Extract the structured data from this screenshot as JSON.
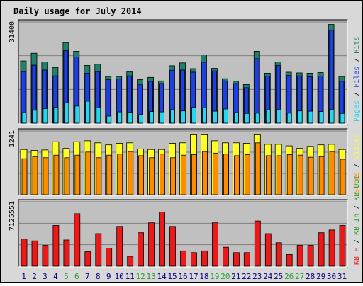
{
  "chart_data": {
    "type": "bar",
    "title": "Daily usage for July 2014",
    "colors": {
      "hits": "#22806a",
      "files": "#1e3fe6",
      "pages": "#22d8f0",
      "visits": "#ffff22",
      "sites": "#ff8c00",
      "kb_in": "#2aa030",
      "kb_out": "#2aa030",
      "kb_f": "#ee1818",
      "weekend": "#2aa030",
      "weekday": "#000080",
      "panel": "#c0c0c0",
      "title": "#0000cc"
    },
    "days": [
      "1",
      "2",
      "3",
      "4",
      "5",
      "6",
      "7",
      "8",
      "9",
      "10",
      "11",
      "12",
      "13",
      "14",
      "15",
      "16",
      "17",
      "18",
      "19",
      "20",
      "21",
      "22",
      "23",
      "24",
      "25",
      "26",
      "27",
      "28",
      "29",
      "30",
      "31"
    ],
    "weekend_days": [
      5,
      6,
      12,
      13,
      19,
      20,
      26,
      27
    ],
    "panels": {
      "top": {
        "ymax_label": "31400",
        "ymax": 31400,
        "legend": [
          {
            "text": "Pages",
            "key": "pages"
          },
          {
            "text": " / ",
            "key": "sep"
          },
          {
            "text": "Files",
            "key": "files"
          },
          {
            "text": " / ",
            "key": "sep"
          },
          {
            "text": "Hits",
            "key": "hits"
          }
        ],
        "series": [
          {
            "name": "Hits",
            "key": "hits",
            "values": [
              19300,
              21700,
              19000,
              17300,
              25000,
              22300,
              17900,
              18300,
              14500,
              14500,
              15900,
              13500,
              14200,
              13100,
              17800,
              18700,
              16900,
              21200,
              17000,
              13800,
              13000,
              12000,
              22300,
              15500,
              19000,
              15800,
              15600,
              15500,
              15700,
              30600,
              14500
            ]
          },
          {
            "name": "Files",
            "key": "files",
            "values": [
              16000,
              18000,
              16500,
              14700,
              22500,
              20500,
              15500,
              16000,
              13500,
              13700,
              14700,
              11900,
              13000,
              12300,
              16400,
              16500,
              15800,
              18900,
              16200,
              13100,
              12300,
              11000,
              20000,
              14600,
              17900,
              14800,
              14700,
              14400,
              14600,
              28800,
              13000
            ]
          },
          {
            "name": "Pages",
            "key": "pages",
            "values": [
              3300,
              4000,
              4500,
              4900,
              6300,
              5300,
              6800,
              4700,
              2200,
              3500,
              3400,
              2700,
              3600,
              3500,
              4200,
              3800,
              4900,
              4700,
              3700,
              4400,
              3300,
              3000,
              3100,
              4100,
              4300,
              3100,
              3800,
              3700,
              3600,
              4300,
              3000
            ]
          }
        ]
      },
      "middle": {
        "ymax_label": "1241",
        "ymax": 1241,
        "legend": [
          {
            "text": "Sites",
            "key": "sites"
          },
          {
            "text": " / ",
            "key": "sep"
          },
          {
            "text": "Visits",
            "key": "visits"
          }
        ],
        "series": [
          {
            "name": "Visits",
            "key": "visits",
            "values": [
              880,
              860,
              870,
              1030,
              900,
              1030,
              1050,
              1010,
              970,
              1000,
              1010,
              890,
              880,
              880,
              1000,
              1010,
              1180,
              1180,
              1050,
              1010,
              1010,
              1000,
              1180,
              980,
              980,
              950,
              900,
              940,
              970,
              980,
              880
            ]
          },
          {
            "name": "Sites",
            "key": "sites",
            "values": [
              700,
              740,
              720,
              770,
              720,
              770,
              830,
              720,
              770,
              790,
              840,
              760,
              720,
              790,
              720,
              770,
              780,
              840,
              810,
              790,
              760,
              780,
              1010,
              760,
              760,
              780,
              770,
              730,
              740,
              840,
              690
            ]
          }
        ]
      },
      "bottom": {
        "ymax_label": "7125551",
        "ymax": 7125551,
        "legend": [
          {
            "text": "KB F",
            "key": "kb_f"
          },
          {
            "text": " / ",
            "key": "sep"
          },
          {
            "text": "KB In",
            "key": "kb_in"
          },
          {
            "text": " / ",
            "key": "sep"
          },
          {
            "text": "KB Out",
            "key": "kb_out"
          }
        ],
        "series": [
          {
            "name": "KB F",
            "key": "kb_f",
            "values": [
              3000000,
              2800000,
              2300000,
              4500000,
              2900000,
              5800000,
              1600000,
              3600000,
              2000000,
              4400000,
              1100000,
              3700000,
              4800000,
              6000000,
              4400000,
              1700000,
              1500000,
              1700000,
              4800000,
              2100000,
              1500000,
              1500000,
              5000000,
              3600000,
              2600000,
              1300000,
              2300000,
              2300000,
              3700000,
              4000000,
              4500000
            ]
          }
        ]
      }
    }
  }
}
